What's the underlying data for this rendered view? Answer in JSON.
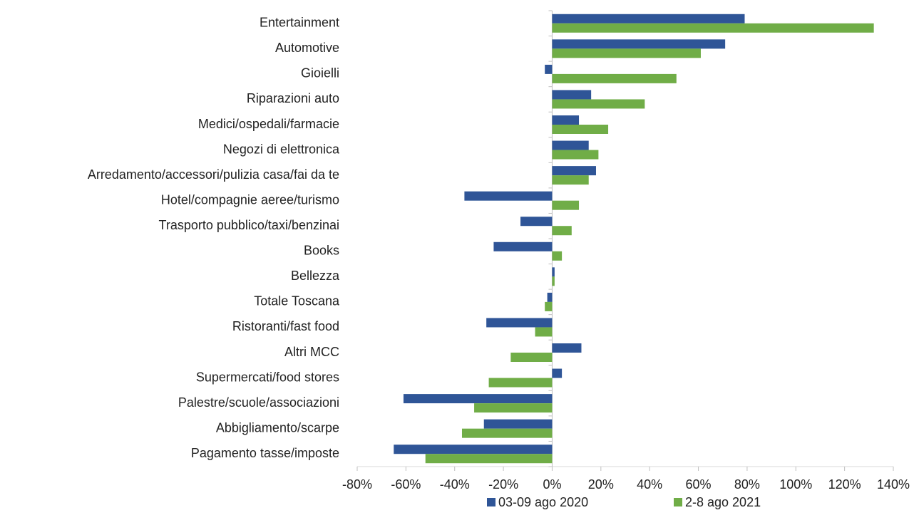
{
  "chart_data": {
    "type": "hbar",
    "categories": [
      "Entertainment",
      "Automotive",
      "Gioielli",
      "Riparazioni auto",
      "Medici/ospedali/farmacie",
      "Negozi di elettronica",
      "Arredamento/accessori/pulizia casa/fai da te",
      "Hotel/compagnie aeree/turismo",
      "Trasporto pubblico/taxi/benzinai",
      "Books",
      "Bellezza",
      "Totale Toscana",
      "Ristoranti/fast food",
      "Altri MCC",
      "Supermercati/food stores",
      "Palestre/scuole/associazioni",
      "Abbigliamento/scarpe",
      "Pagamento tasse/imposte"
    ],
    "series": [
      {
        "name": "03-09 ago 2020",
        "color": "#2f5597",
        "values": [
          79,
          71,
          -3,
          16,
          11,
          15,
          18,
          -36,
          -13,
          -24,
          1,
          -2,
          -27,
          12,
          4,
          -61,
          -28,
          -65
        ]
      },
      {
        "name": "2-8 ago 2021",
        "color": "#70ad47",
        "values": [
          132,
          61,
          51,
          38,
          23,
          19,
          15,
          11,
          8,
          4,
          1,
          -3,
          -7,
          -17,
          -26,
          -32,
          -37,
          -52
        ]
      }
    ],
    "xlim": [
      -80,
      140
    ],
    "xticks": [
      {
        "value": -80,
        "label": "-80%"
      },
      {
        "value": -60,
        "label": "-60%"
      },
      {
        "value": -40,
        "label": "-40%"
      },
      {
        "value": -20,
        "label": "-20%"
      },
      {
        "value": 0,
        "label": "0%"
      },
      {
        "value": 20,
        "label": "20%"
      },
      {
        "value": 40,
        "label": "40%"
      },
      {
        "value": 60,
        "label": "60%"
      },
      {
        "value": 80,
        "label": "80%"
      },
      {
        "value": 100,
        "label": "100%"
      },
      {
        "value": 120,
        "label": "120%"
      },
      {
        "value": 140,
        "label": "140%"
      }
    ],
    "grid": false,
    "legend": "bottom"
  }
}
